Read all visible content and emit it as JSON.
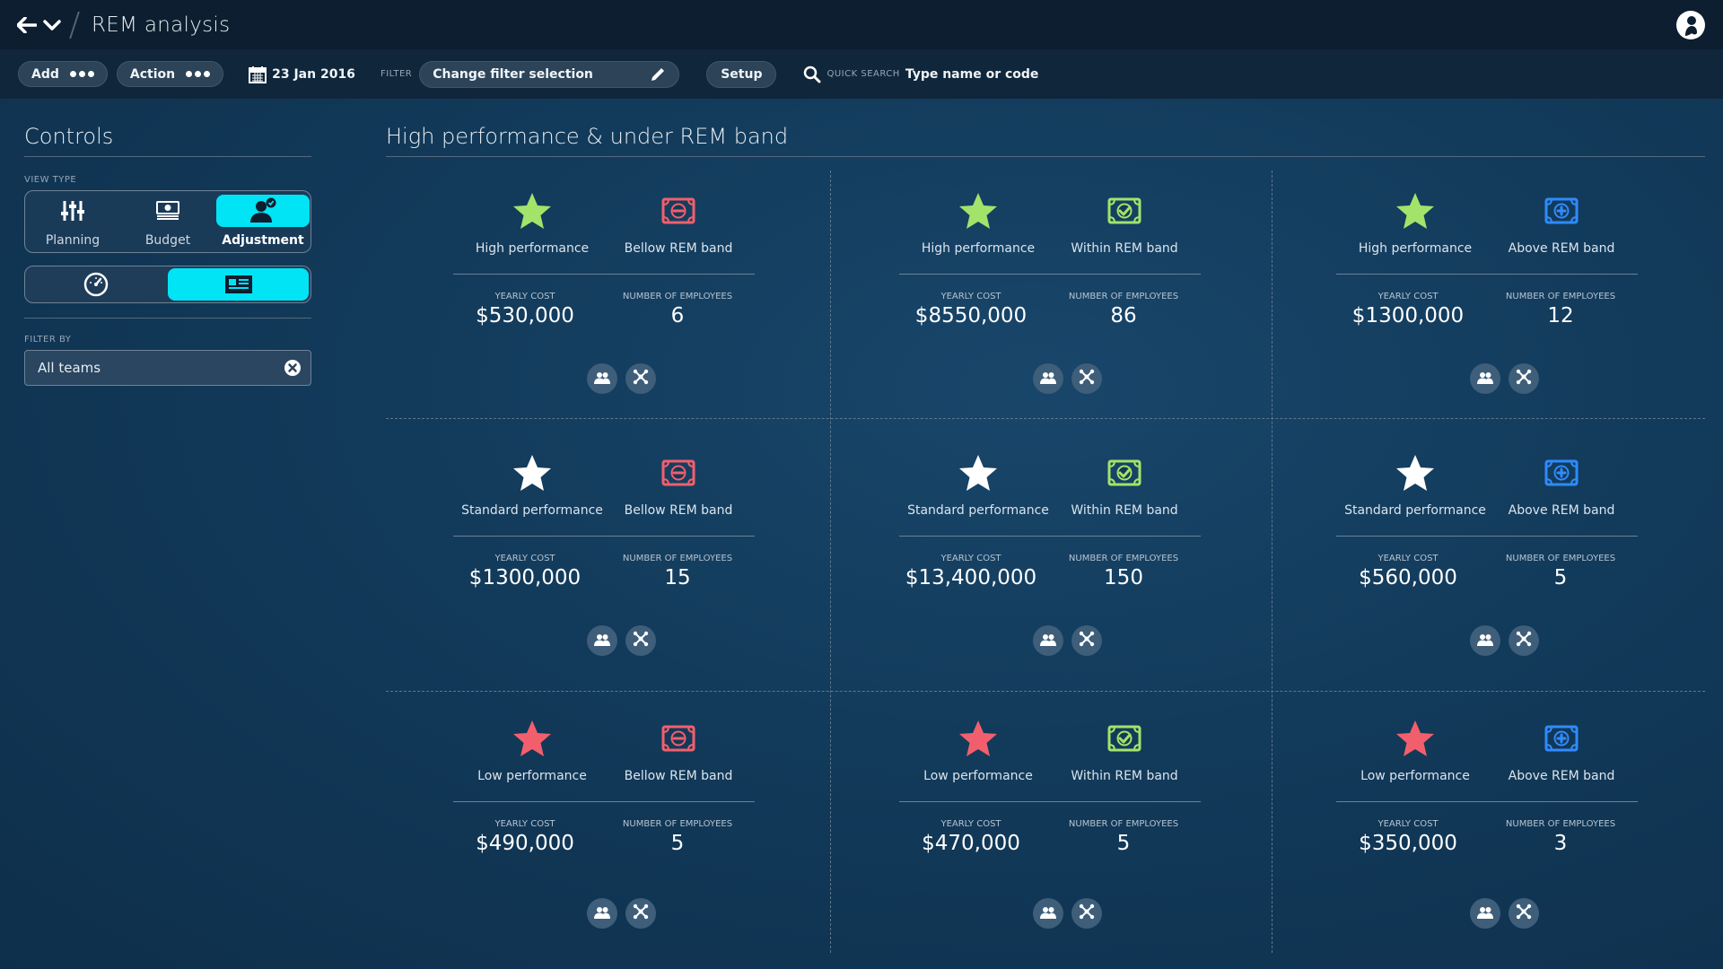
{
  "titlebar": {
    "title": "REM analysis"
  },
  "toolbar": {
    "add_label": "Add",
    "action_label": "Action",
    "date": "23 Jan 2016",
    "filter_label": "FILTER",
    "filter_value": "Change filter selection",
    "setup_label": "Setup",
    "quick_search_label": "QUICK SEARCH",
    "quick_search_text": "Type name or  code"
  },
  "controls": {
    "title": "Controls",
    "view_type_label": "VIEW TYPE",
    "view_types": [
      {
        "label": "Planning",
        "icon": "sliders-icon",
        "active": false
      },
      {
        "label": "Budget",
        "icon": "budget-icon",
        "active": false
      },
      {
        "label": "Adjustment",
        "icon": "user-check-icon",
        "active": true
      }
    ],
    "display_modes": [
      {
        "icon": "gauge-icon",
        "active": false
      },
      {
        "icon": "card-icon",
        "active": true
      }
    ],
    "filter_by_label": "FILTER BY",
    "filter_by_value": "All teams"
  },
  "main": {
    "title": "High performance & under REM band",
    "stat_labels": {
      "cost": "YEARLY COST",
      "employees": "NUMBER OF EMPLOYEES"
    },
    "colors": {
      "high": "#a3e36a",
      "standard": "#ffffff",
      "low": "#f25f6c",
      "below_band": "#f25f6c",
      "within_band": "#a3e36a",
      "above_band": "#2f8bff"
    },
    "cells": [
      {
        "performance": "High performance",
        "perf_level": "high",
        "band": "Bellow REM band",
        "band_type": "below",
        "cost": "$530,000",
        "employees": "6"
      },
      {
        "performance": "High performance",
        "perf_level": "high",
        "band": "Within REM band",
        "band_type": "within",
        "cost": "$8550,000",
        "employees": "86"
      },
      {
        "performance": "High performance",
        "perf_level": "high",
        "band": "Above REM band",
        "band_type": "above",
        "cost": "$1300,000",
        "employees": "12"
      },
      {
        "performance": "Standard performance",
        "perf_level": "standard",
        "band": "Bellow REM band",
        "band_type": "below",
        "cost": "$1300,000",
        "employees": "15"
      },
      {
        "performance": "Standard performance",
        "perf_level": "standard",
        "band": "Within REM band",
        "band_type": "within",
        "cost": "$13,400,000",
        "employees": "150"
      },
      {
        "performance": "Standard performance",
        "perf_level": "standard",
        "band": "Above REM band",
        "band_type": "above",
        "cost": "$560,000",
        "employees": "5"
      },
      {
        "performance": "Low performance",
        "perf_level": "low",
        "band": "Bellow REM band",
        "band_type": "below",
        "cost": "$490,000",
        "employees": "5"
      },
      {
        "performance": "Low performance",
        "perf_level": "low",
        "band": "Within REM band",
        "band_type": "within",
        "cost": "$470,000",
        "employees": "5"
      },
      {
        "performance": "Low performance",
        "perf_level": "low",
        "band": "Above REM band",
        "band_type": "above",
        "cost": "$350,000",
        "employees": "3"
      }
    ]
  }
}
